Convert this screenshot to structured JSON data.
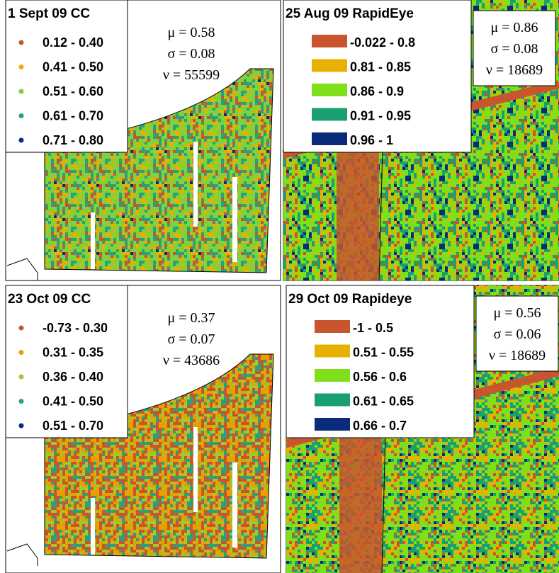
{
  "panels": [
    {
      "title": "1 Sept 09 CC",
      "kind": "cc",
      "legend": [
        {
          "label": "0.12 - 0.40",
          "color": "#c8552e"
        },
        {
          "label": "0.41 - 0.50",
          "color": "#e8b000"
        },
        {
          "label": "0.51 - 0.60",
          "color": "#7fd23a"
        },
        {
          "label": "0.61 - 0.70",
          "color": "#2aa07c"
        },
        {
          "label": "0.71 - 0.80",
          "color": "#0a2a7a"
        }
      ],
      "stats": [
        "μ = 0.58",
        "σ = 0.08",
        "ν = 55599"
      ]
    },
    {
      "title": "25 Aug 09 RapidEye",
      "kind": "re",
      "legend": [
        {
          "label": "-0.022 - 0.8",
          "color": "#c8552e"
        },
        {
          "label": "0.81 - 0.85",
          "color": "#e8b000"
        },
        {
          "label": "0.86 - 0.9",
          "color": "#7fe01a"
        },
        {
          "label": "0.91 - 0.95",
          "color": "#1aa070"
        },
        {
          "label": "0.96 - 1",
          "color": "#0a2a7a"
        }
      ],
      "stats": [
        "μ = 0.86",
        "σ = 0.08",
        "ν = 18689"
      ]
    },
    {
      "title": "23 Oct 09 CC",
      "kind": "cc",
      "legend": [
        {
          "label": "-0.73 - 0.30",
          "color": "#c8552e"
        },
        {
          "label": "0.31 - 0.35",
          "color": "#e8a000"
        },
        {
          "label": "0.36 - 0.40",
          "color": "#9acd32"
        },
        {
          "label": "0.41 - 0.50",
          "color": "#2aa07c"
        },
        {
          "label": "0.51 - 0.70",
          "color": "#0a2a7a"
        }
      ],
      "stats": [
        "μ = 0.37",
        "σ = 0.07",
        "ν = 43686"
      ]
    },
    {
      "title": "29 Oct 09 Rapideye",
      "kind": "re",
      "legend": [
        {
          "label": "-1 - 0.5",
          "color": "#c8552e"
        },
        {
          "label": "0.51 - 0.55",
          "color": "#e8b000"
        },
        {
          "label": "0.56 - 0.6",
          "color": "#7fe01a"
        },
        {
          "label": "0.61 - 0.65",
          "color": "#1aa070"
        },
        {
          "label": "0.66 - 0.7",
          "color": "#0a2a7a"
        }
      ],
      "stats": [
        "μ = 0.56",
        "σ = 0.06",
        "ν = 18689"
      ]
    }
  ]
}
